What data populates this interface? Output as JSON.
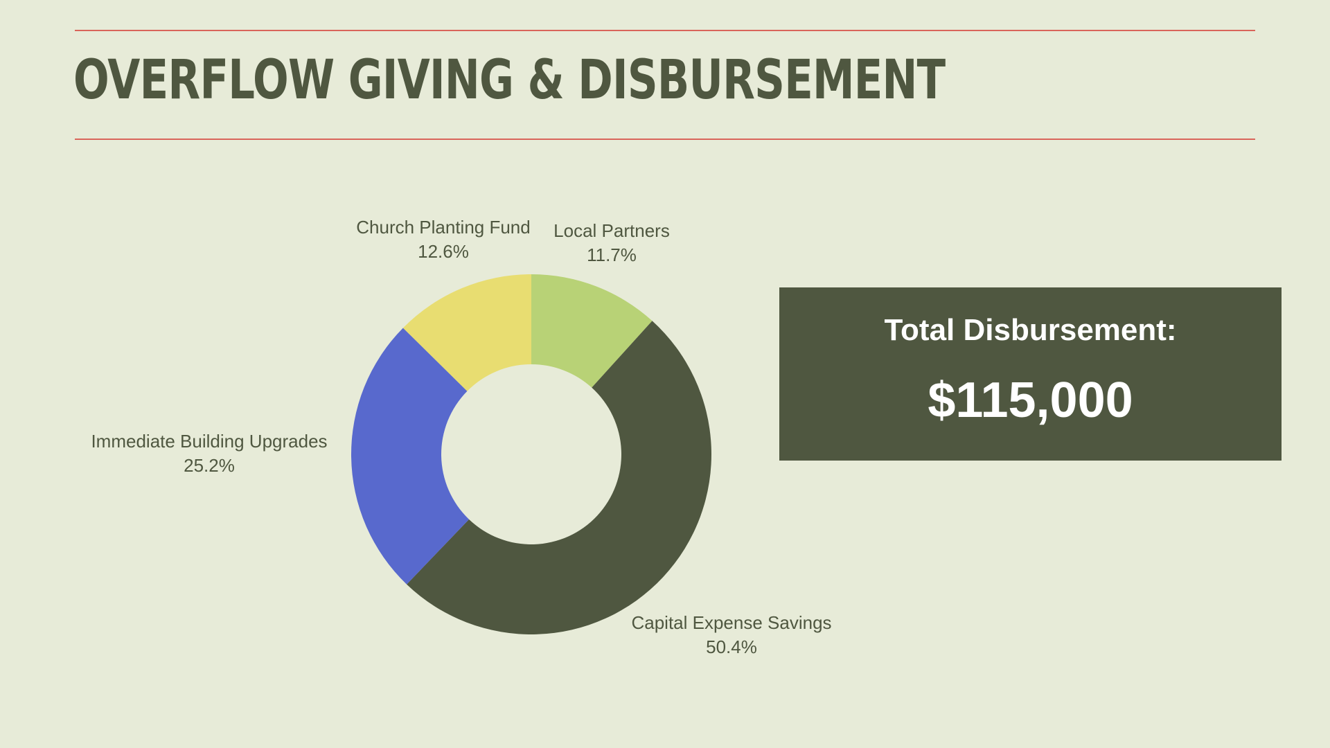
{
  "page": {
    "title": "OVERFLOW GIVING & DISBURSEMENT",
    "total_label": "Total Disbursement:",
    "total_value": "$115,000"
  },
  "colors": {
    "background": "#e7ebd8",
    "rule": "#d9645a",
    "title": "#4f5740",
    "total_box": "#4f5740"
  },
  "chart_data": {
    "type": "pie",
    "donut": true,
    "slices": [
      {
        "name": "Local Partners",
        "value": 11.7,
        "label": "11.7%",
        "color": "#b8d276"
      },
      {
        "name": "Capital Expense Savings",
        "value": 50.4,
        "label": "50.4%",
        "color": "#4f5740"
      },
      {
        "name": "Immediate Building Upgrades",
        "value": 25.2,
        "label": "25.2%",
        "color": "#5869cd"
      },
      {
        "name": "Church Planting Fund",
        "value": 12.6,
        "label": "12.6%",
        "color": "#e8dd71"
      }
    ]
  }
}
